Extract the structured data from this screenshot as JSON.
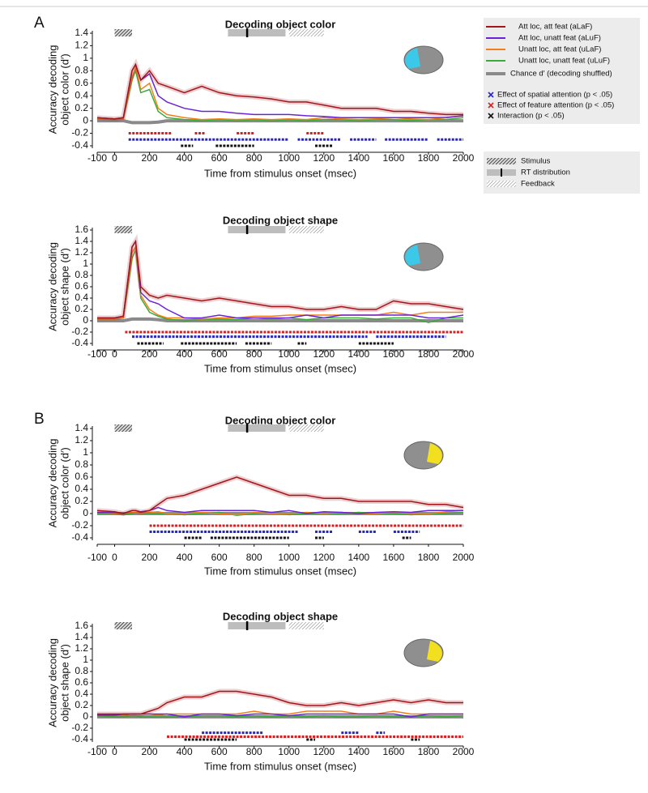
{
  "chart_data": [
    {
      "type": "line",
      "panel": "A",
      "title": "Decoding object color",
      "ylabel": [
        "Accuracy decoding",
        "object color (d′)"
      ],
      "xlabel": "Time from stimulus onset (msec)",
      "roi_color": "#3cc8e8",
      "x": [
        -100,
        0,
        50,
        100,
        120,
        150,
        200,
        250,
        300,
        400,
        500,
        600,
        700,
        800,
        900,
        1000,
        1100,
        1200,
        1300,
        1400,
        1500,
        1600,
        1700,
        1800,
        1900,
        2000
      ],
      "xlim": [
        -100,
        2000
      ],
      "xticks": [
        -100,
        0,
        200,
        400,
        600,
        800,
        1000,
        1200,
        1400,
        1600,
        1800,
        2000
      ],
      "ylim": [
        -0.4,
        1.4
      ],
      "yticks": [
        -0.4,
        -0.2,
        0,
        0.2,
        0.4,
        0.6,
        0.8,
        1,
        1.2,
        1.4
      ],
      "series": [
        {
          "name": "Att loc, att feat (aLaF)",
          "color": "#a3151b",
          "values": [
            0.05,
            0.03,
            0.05,
            0.8,
            0.9,
            0.65,
            0.8,
            0.6,
            0.55,
            0.45,
            0.55,
            0.45,
            0.4,
            0.38,
            0.35,
            0.3,
            0.3,
            0.25,
            0.2,
            0.2,
            0.2,
            0.15,
            0.15,
            0.12,
            0.1,
            0.1
          ]
        },
        {
          "name": "Att loc, unatt feat (aLuF)",
          "color": "#6a24d8",
          "values": [
            0.05,
            0.03,
            0.05,
            0.8,
            0.9,
            0.65,
            0.75,
            0.4,
            0.3,
            0.2,
            0.15,
            0.15,
            0.12,
            0.1,
            0.1,
            0.1,
            0.08,
            0.07,
            0.05,
            0.05,
            0.05,
            0.05,
            0.05,
            0.05,
            0.05,
            0.08
          ]
        },
        {
          "name": "Unatt loc, att feat (uLaF)",
          "color": "#f07f1a",
          "values": [
            0.03,
            0.03,
            0.03,
            0.7,
            0.85,
            0.5,
            0.6,
            0.2,
            0.1,
            0.05,
            0.02,
            0.03,
            0.02,
            0.03,
            0.02,
            0.03,
            0.02,
            0.05,
            0.03,
            0.02,
            0.03,
            0.05,
            0.03,
            0.02,
            0.05,
            0.08
          ]
        },
        {
          "name": "Unatt loc, unatt feat (uLuF)",
          "color": "#3aab3a",
          "values": [
            0.03,
            0.02,
            0.03,
            0.65,
            0.8,
            0.45,
            0.5,
            0.15,
            0.05,
            0.02,
            0,
            0.02,
            0,
            0.02,
            0,
            0.02,
            0,
            0.02,
            0.02,
            0,
            0.02,
            0.02,
            0,
            0.02,
            0.02,
            0.05
          ]
        },
        {
          "name": "Chance d′ (decoding shuffled)",
          "color": "#8a8a8a",
          "values": [
            0,
            0,
            0,
            -0.03,
            -0.03,
            -0.03,
            -0.03,
            -0.02,
            0,
            0,
            0,
            0,
            0,
            0,
            0,
            0,
            0,
            0,
            0,
            0,
            0,
            0,
            0,
            0,
            0,
            0
          ]
        }
      ],
      "significance": [
        {
          "name": "Effect of spatial attention (p < .05)",
          "color": "#2626c8",
          "y": -0.3,
          "spans": [
            [
              80,
              1000
            ],
            [
              1050,
              1300
            ],
            [
              1350,
              1500
            ],
            [
              1550,
              1800
            ],
            [
              1850,
              2000
            ]
          ]
        },
        {
          "name": "Effect of feature attention (p < .05)",
          "color": "#d42020",
          "y": -0.2,
          "spans": [
            [
              80,
              330
            ],
            [
              460,
              520
            ],
            [
              700,
              800
            ],
            [
              1100,
              1200
            ]
          ]
        },
        {
          "name": "Interaction (p < .05)",
          "color": "#111111",
          "y": -0.4,
          "spans": [
            [
              380,
              450
            ],
            [
              580,
              800
            ],
            [
              1150,
              1250
            ]
          ]
        }
      ]
    },
    {
      "type": "line",
      "title": "Decoding object shape",
      "ylabel": [
        "Accuracy decoding",
        "object shape (d′)"
      ],
      "xlabel": "Time from stimulus onset (msec)",
      "roi_color": "#3cc8e8",
      "x": [
        -100,
        0,
        50,
        100,
        120,
        150,
        200,
        250,
        300,
        400,
        500,
        600,
        700,
        800,
        900,
        1000,
        1100,
        1200,
        1300,
        1400,
        1500,
        1600,
        1700,
        1800,
        1900,
        2000
      ],
      "xlim": [
        -100,
        2000
      ],
      "xticks": [
        -100,
        0,
        200,
        400,
        600,
        800,
        1000,
        1200,
        1400,
        1600,
        1800,
        2000
      ],
      "ylim": [
        -0.4,
        1.6
      ],
      "yticks": [
        -0.4,
        -0.2,
        0,
        0.2,
        0.4,
        0.6,
        0.8,
        1,
        1.2,
        1.4,
        1.6
      ],
      "series": [
        {
          "values": [
            0.05,
            0.05,
            0.08,
            1.3,
            1.4,
            0.6,
            0.45,
            0.4,
            0.45,
            0.4,
            0.35,
            0.4,
            0.35,
            0.3,
            0.25,
            0.25,
            0.2,
            0.2,
            0.25,
            0.2,
            0.2,
            0.35,
            0.3,
            0.3,
            0.25,
            0.2
          ]
        },
        {
          "values": [
            0.05,
            0.05,
            0.08,
            1.3,
            1.4,
            0.5,
            0.35,
            0.3,
            0.2,
            0.05,
            0.05,
            0.1,
            0.05,
            0.05,
            0.05,
            0.05,
            0.1,
            0.05,
            0.1,
            0.1,
            0.1,
            0.1,
            0.1,
            0.05,
            0.05,
            0.1
          ]
        },
        {
          "values": [
            0.03,
            0.03,
            0.05,
            1.2,
            1.3,
            0.45,
            0.2,
            0.1,
            0.05,
            0.05,
            0.03,
            0.05,
            0.05,
            0.08,
            0.08,
            0.1,
            0.1,
            0.1,
            0.1,
            0.1,
            0.1,
            0.15,
            0.1,
            0.15,
            0.15,
            0.15
          ]
        },
        {
          "values": [
            0.03,
            0.03,
            0.05,
            1.1,
            1.25,
            0.4,
            0.15,
            0.08,
            0.03,
            0,
            0.02,
            0.03,
            0.02,
            0.05,
            0.03,
            0.05,
            0.02,
            0.05,
            0.05,
            0.05,
            0.03,
            0.05,
            0.05,
            -0.03,
            0.05,
            0.05
          ]
        },
        {
          "values": [
            0,
            0,
            0,
            0.03,
            0.03,
            0.03,
            0.03,
            0.02,
            0,
            0,
            0,
            0,
            0,
            0,
            0,
            0,
            0,
            0,
            0,
            0,
            0,
            0,
            0,
            0,
            0,
            0
          ]
        }
      ],
      "significance": [
        {
          "y": -0.28,
          "spans": [
            [
              100,
              1450
            ],
            [
              1500,
              1900
            ]
          ]
        },
        {
          "y": -0.2,
          "spans": [
            [
              60,
              2000
            ]
          ]
        },
        {
          "y": -0.4,
          "spans": [
            [
              130,
              280
            ],
            [
              380,
              700
            ],
            [
              750,
              900
            ],
            [
              1050,
              1100
            ],
            [
              1400,
              1600
            ]
          ]
        }
      ]
    },
    {
      "type": "line",
      "panel": "B",
      "title": "Decoding object color",
      "ylabel": [
        "Accuracy decoding",
        "object color (d′)"
      ],
      "xlabel": "Time from stimulus onset (msec)",
      "roi_color": "#f2e020",
      "x": [
        -100,
        0,
        50,
        100,
        120,
        150,
        200,
        250,
        300,
        400,
        500,
        600,
        700,
        800,
        900,
        1000,
        1100,
        1200,
        1300,
        1400,
        1500,
        1600,
        1700,
        1800,
        1900,
        2000
      ],
      "xlim": [
        -100,
        2000
      ],
      "xticks": [
        -100,
        0,
        200,
        400,
        600,
        800,
        1000,
        1200,
        1400,
        1600,
        1800,
        2000
      ],
      "ylim": [
        -0.4,
        1.4
      ],
      "yticks": [
        -0.4,
        -0.2,
        0,
        0.2,
        0.4,
        0.6,
        0.8,
        1,
        1.2,
        1.4
      ],
      "series": [
        {
          "values": [
            0.05,
            0.03,
            0,
            0.05,
            0.05,
            0.02,
            0.05,
            0.15,
            0.25,
            0.3,
            0.4,
            0.5,
            0.6,
            0.5,
            0.4,
            0.3,
            0.3,
            0.25,
            0.25,
            0.2,
            0.2,
            0.2,
            0.2,
            0.15,
            0.15,
            0.1
          ]
        },
        {
          "values": [
            0.02,
            0.02,
            0,
            0.05,
            0.05,
            0.03,
            0.05,
            0.1,
            0.05,
            0.02,
            0.05,
            0.05,
            0.05,
            0.05,
            0.02,
            0.05,
            0,
            0.03,
            0.02,
            0,
            0.02,
            0.03,
            0.02,
            0.05,
            0.05,
            0.05
          ]
        },
        {
          "values": [
            0.02,
            0,
            0,
            0.02,
            0.02,
            0,
            0.02,
            0.03,
            0,
            0,
            0.02,
            0,
            -0.02,
            0.02,
            0,
            0,
            0.02,
            0,
            0.02,
            0,
            0,
            0.02,
            0,
            0,
            0.03,
            0.05
          ]
        },
        {
          "values": [
            0,
            0,
            -0.02,
            0,
            0.02,
            0,
            0,
            0,
            0,
            -0.02,
            0,
            0.02,
            -0.03,
            0,
            0.02,
            -0.02,
            0,
            0,
            0,
            0.02,
            0,
            0,
            -0.02,
            0,
            0,
            0.02
          ]
        },
        {
          "values": [
            0,
            0,
            0,
            0,
            0,
            0,
            0,
            0,
            0,
            0,
            0,
            0,
            0,
            0,
            0,
            0,
            0,
            0,
            0,
            0,
            0,
            0,
            0,
            0,
            0,
            0
          ]
        }
      ],
      "significance": [
        {
          "y": -0.3,
          "spans": [
            [
              200,
              1050
            ],
            [
              1150,
              1250
            ],
            [
              1400,
              1500
            ],
            [
              1600,
              1750
            ]
          ]
        },
        {
          "y": -0.2,
          "spans": [
            [
              200,
              2000
            ]
          ]
        },
        {
          "y": -0.4,
          "spans": [
            [
              400,
              500
            ],
            [
              550,
              1000
            ],
            [
              1150,
              1200
            ],
            [
              1650,
              1700
            ]
          ]
        }
      ]
    },
    {
      "type": "line",
      "title": "Decoding object shape",
      "ylabel": [
        "Accuracy decoding",
        "object shape (d′)"
      ],
      "xlabel": "Time from stimulus onset (msec)",
      "roi_color": "#f2e020",
      "x": [
        -100,
        0,
        50,
        100,
        120,
        150,
        200,
        250,
        300,
        400,
        500,
        600,
        700,
        800,
        900,
        1000,
        1100,
        1200,
        1300,
        1400,
        1500,
        1600,
        1700,
        1800,
        1900,
        2000
      ],
      "xlim": [
        -100,
        2000
      ],
      "xticks": [
        -100,
        0,
        200,
        400,
        600,
        800,
        1000,
        1200,
        1400,
        1600,
        1800,
        2000
      ],
      "ylim": [
        -0.4,
        1.6
      ],
      "yticks": [
        -0.4,
        -0.2,
        0,
        0.2,
        0.4,
        0.6,
        0.8,
        1,
        1.2,
        1.4,
        1.6
      ],
      "series": [
        {
          "values": [
            0.05,
            0.05,
            0.05,
            0.05,
            0.05,
            0.05,
            0.1,
            0.15,
            0.25,
            0.35,
            0.35,
            0.45,
            0.45,
            0.4,
            0.35,
            0.25,
            0.2,
            0.2,
            0.25,
            0.2,
            0.25,
            0.3,
            0.25,
            0.3,
            0.25,
            0.25
          ]
        },
        {
          "values": [
            0.03,
            0.03,
            0.05,
            0.05,
            0.05,
            0.05,
            0.05,
            0.05,
            0.05,
            0,
            0.05,
            0.05,
            0.02,
            0.05,
            0.05,
            0.02,
            0.05,
            0.05,
            0.05,
            0.05,
            0.05,
            0.05,
            0,
            0.05,
            0.05,
            0.05
          ]
        },
        {
          "values": [
            0.03,
            0.03,
            0.03,
            0.05,
            0.05,
            0.05,
            0.05,
            0.03,
            0.05,
            0.05,
            0.05,
            0.05,
            0.05,
            0.1,
            0.05,
            0.05,
            0.1,
            0.1,
            0.1,
            0.05,
            0.05,
            0.1,
            0.05,
            0.05,
            0.05,
            0.05
          ]
        },
        {
          "values": [
            0.02,
            0,
            0,
            0.02,
            0.02,
            0,
            0,
            0,
            0,
            0,
            0.02,
            0.02,
            0,
            0.02,
            0,
            0.02,
            0,
            0.02,
            0,
            0,
            0.02,
            0,
            0,
            0.02,
            0,
            0.02
          ]
        },
        {
          "values": [
            0,
            0,
            0,
            0,
            0,
            0,
            0,
            0,
            0,
            0,
            0,
            0,
            0,
            0,
            0,
            0,
            0,
            0,
            0,
            0,
            0,
            0,
            0,
            0,
            0,
            0
          ]
        }
      ],
      "significance": [
        {
          "y": -0.28,
          "spans": [
            [
              500,
              850
            ],
            [
              1300,
              1400
            ],
            [
              1500,
              1550
            ]
          ]
        },
        {
          "y": -0.35,
          "spans": [
            [
              300,
              2000
            ]
          ]
        },
        {
          "y": -0.4,
          "spans": [
            [
              400,
              700
            ],
            [
              1100,
              1150
            ],
            [
              1700,
              1750
            ]
          ]
        }
      ]
    }
  ],
  "events": [
    {
      "name": "Stimulus",
      "range": [
        0,
        100
      ]
    },
    {
      "name": "RT distribution",
      "range": [
        650,
        980
      ],
      "median": 760
    },
    {
      "name": "Feedback",
      "range": [
        1000,
        1200
      ]
    }
  ]
}
